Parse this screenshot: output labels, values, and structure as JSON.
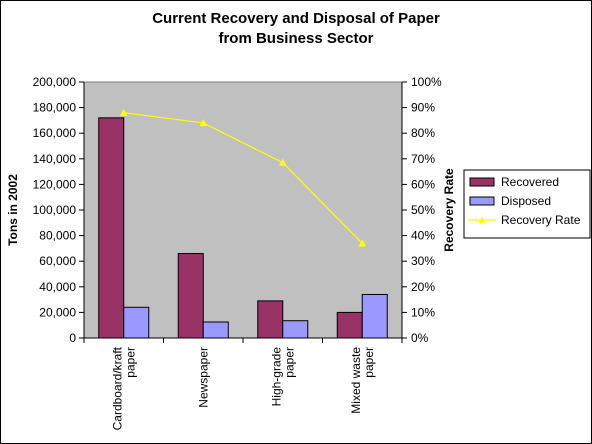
{
  "chart_data": {
    "type": "bar",
    "title": [
      "Current Recovery and Disposal of Paper",
      "from Business Sector"
    ],
    "categories": [
      [
        "Cardboard/kraft",
        "paper"
      ],
      [
        "Newspaper"
      ],
      [
        "High-grade",
        "paper"
      ],
      [
        "Mixed waste",
        "paper"
      ]
    ],
    "series": [
      {
        "name": "Recovered",
        "type": "bar",
        "axis": "left",
        "values": [
          172000,
          66000,
          29000,
          20000
        ],
        "color": "#993366"
      },
      {
        "name": "Disposed",
        "type": "bar",
        "axis": "left",
        "values": [
          24000,
          12500,
          13500,
          34000
        ],
        "color": "#9999FF"
      },
      {
        "name": "Recovery Rate",
        "type": "line",
        "axis": "right",
        "values": [
          0.88,
          0.84,
          0.685,
          0.37
        ],
        "color": "#FFFF00"
      }
    ],
    "ylabel": "Tons in 2002",
    "y2label": "Recovery Rate",
    "ylim": [
      0,
      200000
    ],
    "y2lim": [
      0,
      1
    ],
    "yticks": [
      "0",
      "20,000",
      "40,000",
      "60,000",
      "80,000",
      "100,000",
      "120,000",
      "140,000",
      "160,000",
      "180,000",
      "200,000"
    ],
    "y2ticks": [
      "0%",
      "10%",
      "20%",
      "30%",
      "40%",
      "50%",
      "60%",
      "70%",
      "80%",
      "90%",
      "100%"
    ],
    "plot_background": "#C0C0C0",
    "grid": false,
    "legend_position": "right"
  }
}
